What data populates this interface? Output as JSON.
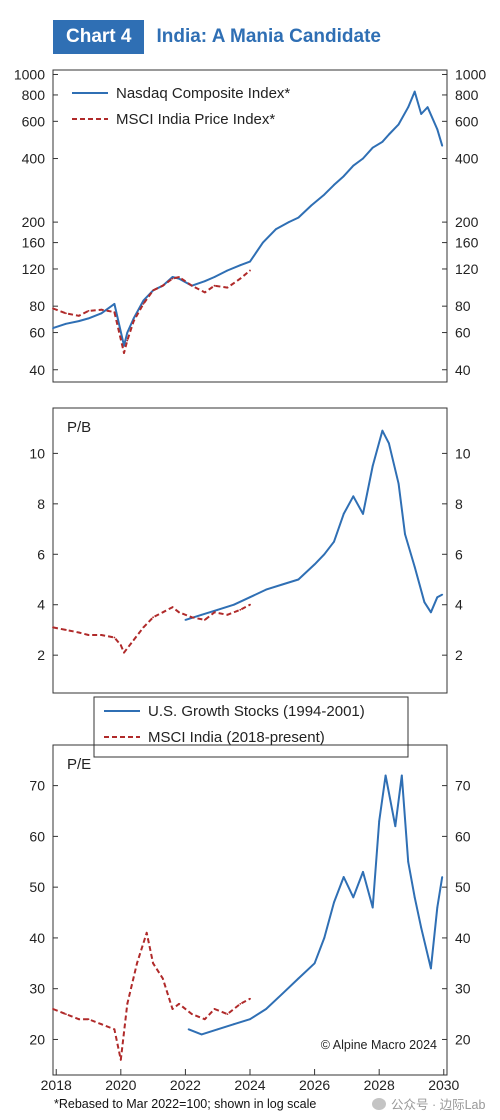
{
  "header": {
    "tag": "Chart 4",
    "title": "India: A Mania Candidate"
  },
  "footnote": "*Rebased to Mar 2022=100; shown in log scale",
  "watermark": "公众号 · 边际Lab",
  "copyright": "© Alpine Macro 2024",
  "colors": {
    "us": "#2f6fb4",
    "india": "#b02a2a",
    "axis": "#333333",
    "tag_bg": "#2f6fb4"
  },
  "chart_data": [
    {
      "type": "line",
      "panel": "top",
      "scale": "log",
      "ylim": [
        35,
        1050
      ],
      "yticks": [
        40,
        60,
        80,
        120,
        160,
        200,
        400,
        600,
        800,
        1000
      ],
      "legend": [
        "Nasdaq Composite Index*",
        "MSCI India Price Index*"
      ],
      "legend_position": "top-left",
      "series": [
        {
          "name": "Nasdaq Composite Index*",
          "x": [
            2017.9,
            2018.3,
            2018.7,
            2019.0,
            2019.4,
            2019.8,
            2020.1,
            2020.2,
            2020.4,
            2020.7,
            2021.0,
            2021.3,
            2021.6,
            2021.8,
            2022.2,
            2022.6,
            2022.9,
            2023.3,
            2023.7,
            2024.0,
            2024.4,
            2024.8,
            2025.2,
            2025.5,
            2025.9,
            2026.3,
            2026.6,
            2026.9,
            2027.2,
            2027.5,
            2027.8,
            2028.1,
            2028.3,
            2028.6,
            2028.9,
            2029.1,
            2029.3,
            2029.5,
            2029.8,
            2029.95
          ],
          "y": [
            63,
            66,
            68,
            70,
            74,
            82,
            52,
            60,
            70,
            85,
            95,
            100,
            110,
            108,
            100,
            105,
            110,
            118,
            125,
            130,
            160,
            185,
            200,
            210,
            240,
            270,
            300,
            330,
            370,
            400,
            450,
            480,
            520,
            580,
            700,
            830,
            650,
            700,
            550,
            460
          ]
        },
        {
          "name": "MSCI India Price Index*",
          "x": [
            2017.9,
            2018.3,
            2018.7,
            2019.0,
            2019.4,
            2019.8,
            2020.1,
            2020.2,
            2020.4,
            2020.7,
            2021.0,
            2021.3,
            2021.6,
            2021.8,
            2022.2,
            2022.6,
            2022.9,
            2023.3,
            2023.7,
            2024.0
          ],
          "y": [
            78,
            74,
            72,
            76,
            77,
            75,
            48,
            55,
            68,
            82,
            95,
            100,
            108,
            110,
            100,
            93,
            100,
            98,
            108,
            118
          ]
        }
      ]
    },
    {
      "type": "line",
      "panel": "middle",
      "label": "P/B",
      "ylim": [
        0.5,
        11.8
      ],
      "yticks": [
        2,
        4,
        6,
        8,
        10
      ],
      "legend": [
        "U.S. Growth Stocks (1994-2001)",
        "MSCI India (2018-present)"
      ],
      "legend_position": "bottom-center",
      "series": [
        {
          "name": "U.S. Growth Stocks (1994-2001)",
          "x": [
            2022.0,
            2022.5,
            2023.0,
            2023.5,
            2024.0,
            2024.5,
            2025.0,
            2025.5,
            2026.0,
            2026.3,
            2026.6,
            2026.9,
            2027.2,
            2027.5,
            2027.8,
            2028.1,
            2028.3,
            2028.6,
            2028.8,
            2029.1,
            2029.4,
            2029.6,
            2029.8,
            2029.95
          ],
          "y": [
            3.4,
            3.6,
            3.8,
            4.0,
            4.3,
            4.6,
            4.8,
            5.0,
            5.6,
            6.0,
            6.5,
            7.6,
            8.3,
            7.6,
            9.5,
            10.9,
            10.4,
            8.8,
            6.8,
            5.5,
            4.1,
            3.7,
            4.3,
            4.4
          ]
        },
        {
          "name": "MSCI India (2018-present)",
          "x": [
            2017.9,
            2018.3,
            2018.7,
            2019.0,
            2019.4,
            2019.8,
            2020.0,
            2020.1,
            2020.4,
            2020.7,
            2021.0,
            2021.3,
            2021.6,
            2021.8,
            2022.2,
            2022.6,
            2022.9,
            2023.3,
            2023.7,
            2024.0
          ],
          "y": [
            3.1,
            3.0,
            2.9,
            2.8,
            2.8,
            2.7,
            2.4,
            2.1,
            2.6,
            3.1,
            3.5,
            3.7,
            3.9,
            3.7,
            3.5,
            3.4,
            3.7,
            3.6,
            3.8,
            4.0
          ]
        }
      ]
    },
    {
      "type": "line",
      "panel": "bottom",
      "label": "P/E",
      "ylim": [
        13,
        78
      ],
      "yticks": [
        20,
        30,
        40,
        50,
        60,
        70
      ],
      "xticks": [
        2018,
        2020,
        2022,
        2024,
        2026,
        2028,
        2030
      ],
      "xlim": [
        2017.9,
        2030.1
      ],
      "series": [
        {
          "name": "U.S. Growth Stocks (1994-2001)",
          "x": [
            2022.1,
            2022.5,
            2023.0,
            2023.5,
            2024.0,
            2024.5,
            2025.0,
            2025.5,
            2026.0,
            2026.3,
            2026.6,
            2026.9,
            2027.2,
            2027.5,
            2027.8,
            2028.0,
            2028.2,
            2028.5,
            2028.7,
            2028.9,
            2029.1,
            2029.3,
            2029.6,
            2029.8,
            2029.95
          ],
          "y": [
            22,
            21,
            22,
            23,
            24,
            26,
            29,
            32,
            35,
            40,
            47,
            52,
            48,
            53,
            46,
            63,
            72,
            62,
            72,
            55,
            48,
            42,
            34,
            46,
            52
          ]
        },
        {
          "name": "MSCI India (2018-present)",
          "x": [
            2017.9,
            2018.3,
            2018.7,
            2019.0,
            2019.4,
            2019.8,
            2020.0,
            2020.2,
            2020.5,
            2020.8,
            2021.0,
            2021.3,
            2021.6,
            2021.8,
            2022.2,
            2022.6,
            2022.9,
            2023.3,
            2023.7,
            2024.0
          ],
          "y": [
            26,
            25,
            24,
            24,
            23,
            22,
            16,
            27,
            35,
            41,
            35,
            32,
            26,
            27,
            25,
            24,
            26,
            25,
            27,
            28
          ]
        }
      ]
    }
  ]
}
